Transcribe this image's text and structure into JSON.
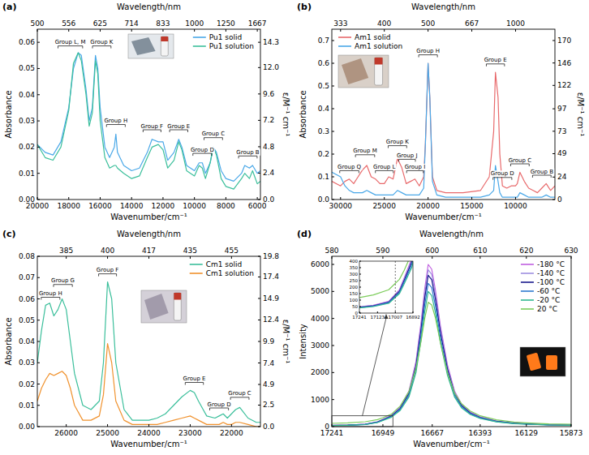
{
  "chart_data": [
    {
      "type": "line",
      "title": "(a)",
      "xlabel": "Wavenumber/cm⁻¹",
      "x2label": "Wavelength/nm",
      "ylabel": "Absorbance",
      "y2label": "ε/M⁻¹ cm⁻¹",
      "xlim": [
        20000,
        5800
      ],
      "xticks": [
        20000,
        18000,
        16000,
        14000,
        12000,
        10000,
        8000,
        6000
      ],
      "x2ticks": [
        {
          "value": 20000,
          "label": "500"
        },
        {
          "value": 18000,
          "label": "556"
        },
        {
          "value": 16000,
          "label": "625"
        },
        {
          "value": 14000,
          "label": "714"
        },
        {
          "value": 12000,
          "label": "833"
        },
        {
          "value": 10000,
          "label": "1000"
        },
        {
          "value": 8000,
          "label": "1250"
        },
        {
          "value": 6000,
          "label": "1667"
        }
      ],
      "ylim": [
        0,
        0.065
      ],
      "yticks": [
        {
          "value": 0,
          "label": "0.00"
        },
        0.01,
        0.02,
        0.03,
        0.04,
        0.05,
        0.06
      ],
      "y2lim": [
        0,
        15.49
      ],
      "y2ticks": [
        {
          "value": 0,
          "label": "0.0"
        },
        2.4,
        4.8,
        7.2,
        9.6,
        {
          "value": 12,
          "label": "12.0"
        },
        14.3
      ],
      "legend": "upper right",
      "x": [
        20000,
        19500,
        19000,
        18500,
        18000,
        17700,
        17400,
        17200,
        16900,
        16700,
        16500,
        16300,
        16150,
        16000,
        15700,
        15400,
        15100,
        15000,
        14900,
        14500,
        14000,
        13500,
        13000,
        12700,
        12300,
        12000,
        11700,
        11300,
        11000,
        10800,
        10500,
        10000,
        9700,
        9500,
        9300,
        9000,
        8800,
        8600,
        8300,
        8000,
        7500,
        7000,
        6800,
        6500,
        6300,
        6000,
        5800
      ],
      "series": [
        {
          "name": "Pu1 solid",
          "color": "#4aa8e8",
          "values": [
            0.021,
            0.018,
            0.017,
            0.022,
            0.035,
            0.05,
            0.056,
            0.055,
            0.042,
            0.03,
            0.035,
            0.055,
            0.05,
            0.035,
            0.02,
            0.016,
            0.02,
            0.025,
            0.018,
            0.013,
            0.011,
            0.012,
            0.018,
            0.023,
            0.022,
            0.022,
            0.015,
            0.018,
            0.023,
            0.02,
            0.013,
            0.011,
            0.014,
            0.014,
            0.01,
            0.014,
            0.02,
            0.018,
            0.011,
            0.008,
            0.007,
            0.01,
            0.013,
            0.012,
            0.013,
            0.01,
            0.011
          ]
        },
        {
          "name": "Pu1 solution",
          "color": "#3bbf9b",
          "values": [
            0.021,
            0.016,
            0.015,
            0.02,
            0.034,
            0.052,
            0.056,
            0.053,
            0.04,
            0.028,
            0.033,
            0.053,
            0.048,
            0.03,
            0.016,
            0.012,
            0.013,
            0.013,
            0.012,
            0.01,
            0.008,
            0.009,
            0.016,
            0.02,
            0.021,
            0.019,
            0.012,
            0.015,
            0.022,
            0.019,
            0.011,
            0.009,
            0.013,
            0.012,
            0.008,
            0.014,
            0.02,
            0.017,
            0.008,
            0.005,
            0.004,
            0.008,
            0.01,
            0.008,
            0.011,
            0.006,
            0.007
          ]
        }
      ],
      "annotations": [
        {
          "text": "Group L, M",
          "x": 17900,
          "y": 0.058
        },
        {
          "text": "Group K",
          "x": 15900,
          "y": 0.058
        },
        {
          "text": "Group H",
          "x": 15000,
          "y": 0.028
        },
        {
          "text": "Group F",
          "x": 12700,
          "y": 0.026
        },
        {
          "text": "Group E",
          "x": 11000,
          "y": 0.026
        },
        {
          "text": "Group D",
          "x": 9500,
          "y": 0.017
        },
        {
          "text": "Group C",
          "x": 8800,
          "y": 0.023
        },
        {
          "text": "Group B",
          "x": 6600,
          "y": 0.016
        }
      ]
    },
    {
      "type": "line",
      "title": "(b)",
      "xlabel": "Wavenumber/cm⁻¹",
      "x2label": "Wavelength/nm",
      "ylabel": "Absorbance",
      "y2label": "ε/M⁻¹ cm⁻¹",
      "xlim": [
        31000,
        5500
      ],
      "xticks": [
        30000,
        25000,
        20000,
        15000,
        10000
      ],
      "x2ticks": [
        {
          "value": 30000,
          "label": "333"
        },
        {
          "value": 25000,
          "label": "400"
        },
        {
          "value": 20000,
          "label": "500"
        },
        {
          "value": 15000,
          "label": "667"
        },
        {
          "value": 10000,
          "label": "1000"
        }
      ],
      "ylim": [
        0,
        0.75
      ],
      "yticks": [
        {
          "value": 0,
          "label": "0.0"
        },
        0.1,
        0.2,
        0.3,
        0.4,
        0.5,
        0.6,
        0.7
      ],
      "y2lim": [
        0,
        182.1
      ],
      "y2ticks": [
        0,
        24,
        49,
        73,
        97,
        122,
        146,
        170
      ],
      "legend": "upper left",
      "x": [
        31000,
        30000,
        29500,
        29000,
        28500,
        28000,
        27500,
        27000,
        26500,
        26000,
        25500,
        25000,
        24500,
        24000,
        23500,
        23000,
        22500,
        22000,
        21500,
        21000,
        20500,
        20300,
        20000,
        19800,
        19500,
        19000,
        18000,
        16000,
        14000,
        13000,
        12500,
        12300,
        12000,
        11800,
        11500,
        11000,
        10500,
        10000,
        9800,
        9500,
        9000,
        8500,
        8000,
        7500,
        7000,
        6500,
        6000,
        5500
      ],
      "series": [
        {
          "name": "Am1 solid",
          "color": "#e8696b",
          "values": [
            0.08,
            0.06,
            0.08,
            0.09,
            0.07,
            0.1,
            0.13,
            0.15,
            0.1,
            0.09,
            0.07,
            0.07,
            0.1,
            0.09,
            0.18,
            0.14,
            0.07,
            0.08,
            0.09,
            0.06,
            0.1,
            0.25,
            0.6,
            0.45,
            0.1,
            0.04,
            0.03,
            0.03,
            0.04,
            0.1,
            0.3,
            0.56,
            0.45,
            0.2,
            0.06,
            0.05,
            0.06,
            0.06,
            0.07,
            0.12,
            0.08,
            0.05,
            0.04,
            0.03,
            0.05,
            0.07,
            0.04,
            0.06
          ]
        },
        {
          "name": "Am1 solution",
          "color": "#4aa8e8",
          "values": [
            0.12,
            0.1,
            0.06,
            0.04,
            0.03,
            0.03,
            0.03,
            0.04,
            0.03,
            0.02,
            0.02,
            0.02,
            0.02,
            0.02,
            0.04,
            0.03,
            0.02,
            0.02,
            0.02,
            0.02,
            0.05,
            0.25,
            0.6,
            0.45,
            0.08,
            0.02,
            0.01,
            0.01,
            0.01,
            0.02,
            0.04,
            0.15,
            0.08,
            0.03,
            0.01,
            0.01,
            0.01,
            0.01,
            0.01,
            0.03,
            0.02,
            0.01,
            0.01,
            0.01,
            0.01,
            0.02,
            0.01,
            0.01
          ]
        }
      ],
      "annotations": [
        {
          "text": "Group Q",
          "x": 29000,
          "y": 0.12
        },
        {
          "text": "Group M",
          "x": 27200,
          "y": 0.19
        },
        {
          "text": "Group L",
          "x": 25000,
          "y": 0.12
        },
        {
          "text": "Group K",
          "x": 23500,
          "y": 0.23
        },
        {
          "text": "Group J",
          "x": 22400,
          "y": 0.17
        },
        {
          "text": "Group I",
          "x": 21500,
          "y": 0.12
        },
        {
          "text": "Group H",
          "x": 20000,
          "y": 0.63
        },
        {
          "text": "Group E",
          "x": 12300,
          "y": 0.59
        },
        {
          "text": "Group D",
          "x": 11500,
          "y": 0.09
        },
        {
          "text": "Group C",
          "x": 9500,
          "y": 0.15
        },
        {
          "text": "Group B",
          "x": 7000,
          "y": 0.1
        }
      ]
    },
    {
      "type": "line",
      "title": "(c)",
      "xlabel": "Wavenumber/cm⁻¹",
      "x2label": "Wavelength/nm",
      "ylabel": "Absorbance",
      "y2label": "ε/M⁻¹ cm⁻¹",
      "xlim": [
        26700,
        21300
      ],
      "xticks": [
        26000,
        25000,
        24000,
        23000,
        22000
      ],
      "x2ticks": [
        {
          "value": 26000,
          "label": "385"
        },
        {
          "value": 25000,
          "label": "400"
        },
        {
          "value": 24000,
          "label": "417"
        },
        {
          "value": 23000,
          "label": "435"
        },
        {
          "value": 22000,
          "label": "455"
        }
      ],
      "ylim": [
        0,
        0.08
      ],
      "yticks": [
        {
          "value": 0,
          "label": "0.00"
        },
        0.01,
        0.02,
        0.03,
        0.04,
        0.05,
        0.06,
        0.07,
        0.08
      ],
      "y2lim": [
        0,
        19.8
      ],
      "y2ticks": [
        {
          "value": 0,
          "label": "0.0"
        },
        2.5,
        4.9,
        7.4,
        9.9,
        12.4,
        14.9,
        17.4,
        19.8
      ],
      "legend": "upper right",
      "x": [
        26700,
        26600,
        26500,
        26400,
        26300,
        26200,
        26100,
        26000,
        25900,
        25800,
        25600,
        25400,
        25200,
        25100,
        25000,
        24900,
        24800,
        24600,
        24400,
        24200,
        24000,
        23800,
        23600,
        23400,
        23200,
        23000,
        22900,
        22800,
        22600,
        22400,
        22300,
        22200,
        22100,
        22000,
        21900,
        21800,
        21600,
        21400,
        21300
      ],
      "series": [
        {
          "name": "Cm1 solid",
          "color": "#3bbf9b",
          "values": [
            0.03,
            0.045,
            0.057,
            0.058,
            0.052,
            0.055,
            0.06,
            0.055,
            0.04,
            0.025,
            0.01,
            0.008,
            0.012,
            0.03,
            0.068,
            0.06,
            0.03,
            0.008,
            0.003,
            0.003,
            0.003,
            0.004,
            0.006,
            0.01,
            0.014,
            0.017,
            0.016,
            0.012,
            0.005,
            0.004,
            0.005,
            0.006,
            0.004,
            0.006,
            0.008,
            0.009,
            0.004,
            0.002,
            0.002
          ]
        },
        {
          "name": "Cm1 solution",
          "color": "#f0922e",
          "values": [
            0.012,
            0.018,
            0.022,
            0.025,
            0.024,
            0.025,
            0.026,
            0.024,
            0.018,
            0.01,
            0.003,
            0.003,
            0.005,
            0.015,
            0.039,
            0.03,
            0.012,
            0.003,
            0.001,
            0.001,
            0.001,
            0.001,
            0.002,
            0.003,
            0.004,
            0.005,
            0.004,
            0.003,
            0.001,
            0.001,
            0.001,
            0.002,
            0.001,
            0.001,
            0.002,
            0.002,
            0.001,
            0.0,
            0.0
          ]
        }
      ],
      "annotations": [
        {
          "text": "Group H",
          "x": 26380,
          "y": 0.06
        },
        {
          "text": "Group G",
          "x": 26080,
          "y": 0.066
        },
        {
          "text": "Group F",
          "x": 25000,
          "y": 0.071
        },
        {
          "text": "Group E",
          "x": 22900,
          "y": 0.02
        },
        {
          "text": "Group D",
          "x": 22300,
          "y": 0.008
        },
        {
          "text": "Group C",
          "x": 21800,
          "y": 0.013
        }
      ]
    },
    {
      "type": "line",
      "title": "(d)",
      "xlabel": "Wavenumber/cm⁻¹",
      "x2label": "Wavelength/nm",
      "ylabel": "Intensity",
      "xlim": [
        17241,
        15873
      ],
      "xticks": [
        17241,
        16949,
        16667,
        16393,
        16129,
        15873
      ],
      "x2ticks": [
        {
          "value": 17241,
          "label": "580"
        },
        {
          "value": 16949,
          "label": "590"
        },
        {
          "value": 16667,
          "label": "600"
        },
        {
          "value": 16393,
          "label": "610"
        },
        {
          "value": 16129,
          "label": "620"
        },
        {
          "value": 15873,
          "label": "630"
        }
      ],
      "ylim": [
        0,
        6300
      ],
      "yticks": [
        0,
        1000,
        2000,
        3000,
        4000,
        5000,
        6000
      ],
      "legend": "upper right",
      "x": [
        17241,
        17150,
        17050,
        16980,
        16949,
        16900,
        16850,
        16800,
        16760,
        16730,
        16710,
        16690,
        16670,
        16650,
        16620,
        16580,
        16540,
        16500,
        16450,
        16393,
        16300,
        16200,
        16129,
        16000,
        15873
      ],
      "series": [
        {
          "name": "-180 °C",
          "color": "#c060e0",
          "values": [
            48,
            60,
            90,
            180,
            270,
            420,
            720,
            1320,
            2400,
            3900,
            5100,
            6000,
            5820,
            5100,
            3720,
            2280,
            1320,
            840,
            540,
            360,
            210,
            132,
            108,
            72,
            60
          ]
        },
        {
          "name": "-140 °C",
          "color": "#9e8fe0",
          "values": [
            46,
            58,
            87,
            174,
            261,
            406,
            696,
            1276,
            2320,
            3770,
            4930,
            5800,
            5626,
            4930,
            3596,
            2204,
            1276,
            812,
            522,
            348,
            203,
            128,
            104,
            70,
            58
          ]
        },
        {
          "name": "-100 °C",
          "color": "#1a1a8c",
          "values": [
            45,
            56,
            84,
            168,
            252,
            392,
            672,
            1232,
            2240,
            3640,
            4760,
            5600,
            5432,
            4760,
            3472,
            2128,
            1232,
            784,
            504,
            336,
            196,
            123,
            101,
            67,
            56
          ]
        },
        {
          "name": "-60 °C",
          "color": "#2e7ad0",
          "values": [
            42,
            53,
            80,
            159,
            239,
            371,
            636,
            1166,
            2120,
            3445,
            4505,
            5300,
            5141,
            4505,
            3286,
            2014,
            1166,
            742,
            477,
            318,
            186,
            117,
            95,
            64,
            53
          ]
        },
        {
          "name": "-20 °C",
          "color": "#30b890",
          "values": [
            40,
            50,
            75,
            150,
            225,
            350,
            600,
            1100,
            2000,
            3250,
            4250,
            5000,
            4850,
            4250,
            3100,
            1900,
            1100,
            700,
            450,
            300,
            175,
            110,
            90,
            60,
            50
          ]
        },
        {
          "name": "20 °C",
          "color": "#7ccc5a",
          "values": [
            120,
            140,
            180,
            260,
            330,
            460,
            760,
            1300,
            2150,
            3200,
            4000,
            4600,
            4500,
            4050,
            3100,
            2000,
            1250,
            850,
            580,
            400,
            250,
            170,
            140,
            100,
            90
          ]
        }
      ],
      "inset": {
        "xlim": [
          17241,
          16892
        ],
        "ylim": [
          0,
          400
        ],
        "xticks": [
          17241,
          17123,
          17007,
          16892
        ],
        "yticks": [
          0,
          50,
          100,
          150,
          200,
          250,
          300,
          350,
          400
        ],
        "vline": 17007
      }
    }
  ]
}
